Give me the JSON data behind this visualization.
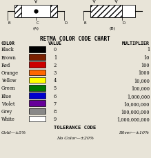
{
  "title": "RETMA COLOR CODE CHART",
  "col_headers": [
    "COLOR",
    "VALUE",
    "MULTIPLIER"
  ],
  "rows": [
    {
      "name": "Black",
      "color": "#000000",
      "value": "0",
      "multiplier": "1"
    },
    {
      "name": "Brown",
      "color": "#7B2000",
      "value": "1",
      "multiplier": "10"
    },
    {
      "name": "Red",
      "color": "#CC0000",
      "value": "2",
      "multiplier": "100"
    },
    {
      "name": "Orange",
      "color": "#FF6600",
      "value": "3",
      "multiplier": "1000"
    },
    {
      "name": "Yellow",
      "color": "#FFFF00",
      "value": "4",
      "multiplier": "10,000"
    },
    {
      "name": "Green",
      "color": "#007700",
      "value": "5",
      "multiplier": "100,000"
    },
    {
      "name": "Blue",
      "color": "#0000CC",
      "value": "6",
      "multiplier": "1,000,000"
    },
    {
      "name": "Violet",
      "color": "#660099",
      "value": "7",
      "multiplier": "10,000,000"
    },
    {
      "name": "Grey",
      "color": "#888888",
      "value": "8",
      "multiplier": "100,000,000"
    },
    {
      "name": "White",
      "color": "#FFFFFF",
      "value": "9",
      "multiplier": "1,000,000,000"
    }
  ],
  "tolerance_title": "TOLERANCE CODE",
  "tolerance_gold": "Gold—±5%",
  "tolerance_silver": "Silver—±10%",
  "tolerance_none": "No Color—±20%",
  "bg_color": "#e8e4d8",
  "text_color": "#000000"
}
